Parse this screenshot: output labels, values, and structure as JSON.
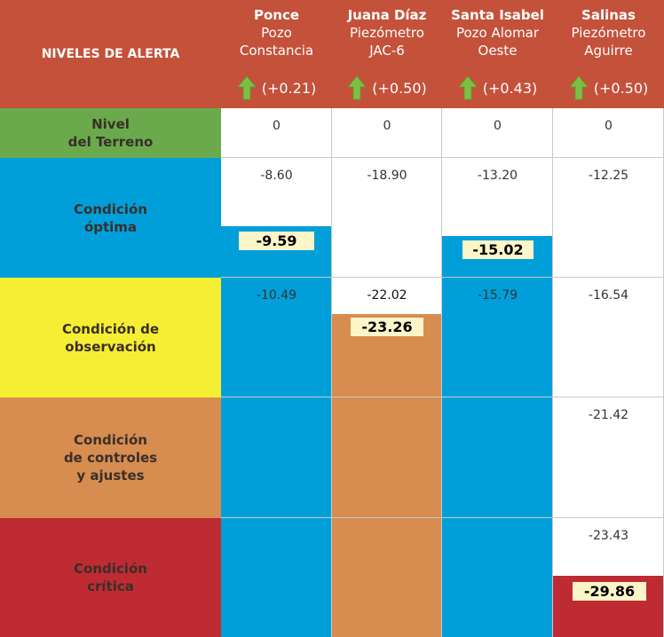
{
  "chart_data": {
    "type": "table",
    "header_label": "NIVELES DE ALERTA",
    "stations": [
      {
        "name": "Ponce",
        "sub1": "Pozo",
        "sub2": "Constancia",
        "change": "(+0.21)",
        "current": "-9.59",
        "current_value": -9.59,
        "level_color": "#019fda"
      },
      {
        "name": "Juana Díaz",
        "sub1": "Piezómetro",
        "sub2": "JAC-6",
        "change": "(+0.50)",
        "current": "-23.26",
        "current_value": -23.26,
        "level_color": "#d68d4f"
      },
      {
        "name": "Santa Isabel",
        "sub1": "Pozo Alomar",
        "sub2": "Oeste",
        "change": "(+0.43)",
        "current": "-15.02",
        "current_value": -15.02,
        "level_color": "#019fda"
      },
      {
        "name": "Salinas",
        "sub1": "Piezómetro",
        "sub2": "Aguirre",
        "change": "(+0.50)",
        "current": "-29.86",
        "current_value": -29.86,
        "level_color": "#be2b33"
      }
    ],
    "levels": [
      {
        "label": "Nivel\ndel Terreno",
        "color": "#6aaa4d",
        "thresholds": [
          "0",
          "0",
          "0",
          "0"
        ]
      },
      {
        "label": "Condición\nóptima",
        "color": "#019fda",
        "thresholds": [
          "-8.60",
          "-18.90",
          "-13.20",
          "-12.25"
        ]
      },
      {
        "label": "Condición de\nobservación",
        "color": "#f6ee33",
        "thresholds": [
          "-10.49",
          "-22.02",
          "-15.79",
          "-16.54"
        ]
      },
      {
        "label": "Condición\nde controles\ny ajustes",
        "color": "#d68d4f",
        "thresholds": [
          "",
          "",
          "",
          "-21.42"
        ]
      },
      {
        "label": "Condición\ncrítica",
        "color": "#be2b33",
        "thresholds": [
          "",
          "",
          "",
          "-23.43"
        ]
      }
    ],
    "colors": {
      "header": "#c4513a",
      "arrow": "#7cc043",
      "highlight": "#fbf5c8"
    }
  }
}
